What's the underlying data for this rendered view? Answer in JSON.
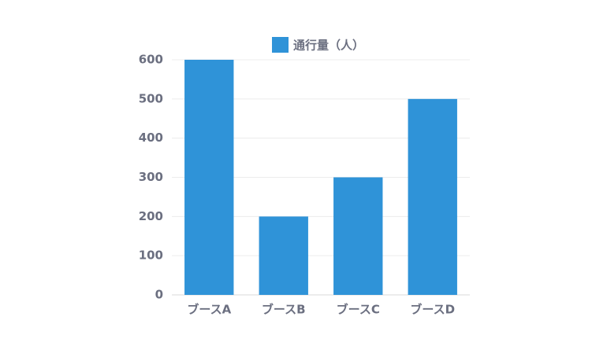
{
  "chart_data": {
    "type": "bar",
    "categories": [
      "ブースA",
      "ブースB",
      "ブースC",
      "ブースD"
    ],
    "series": [
      {
        "name": "通行量（人）",
        "color": "#2f93d8",
        "values": [
          600,
          200,
          300,
          500
        ]
      }
    ],
    "ylim": [
      0,
      600
    ],
    "yticks": [
      0,
      100,
      200,
      300,
      400,
      500,
      600
    ],
    "grid": true,
    "legend": "top"
  }
}
